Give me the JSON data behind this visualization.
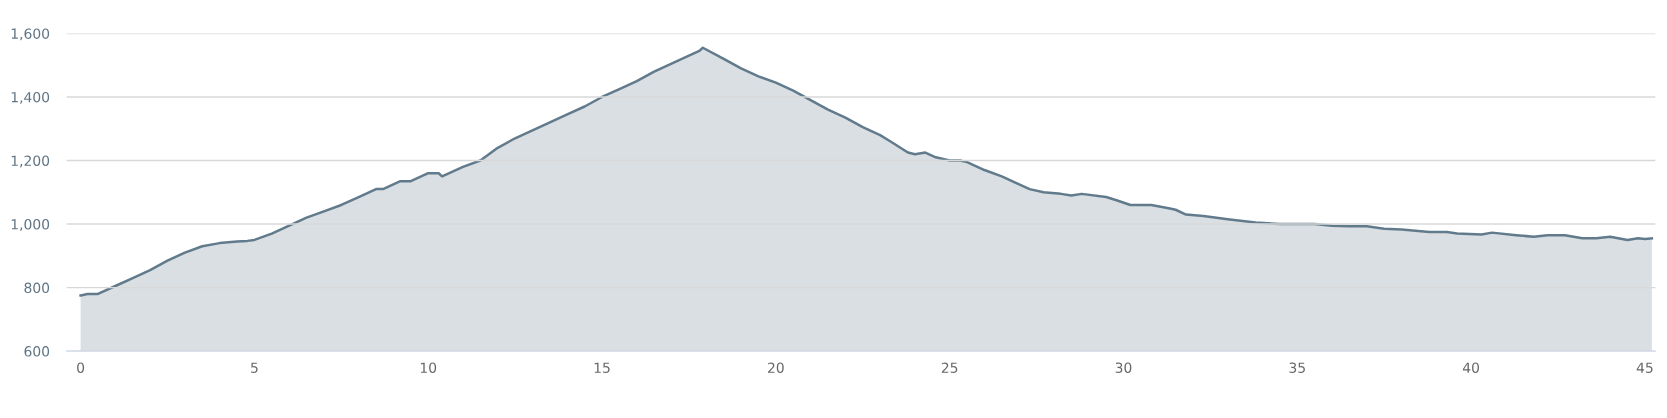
{
  "chart_data": {
    "type": "area",
    "x": [
      0,
      0.2,
      0.5,
      1,
      1.5,
      2,
      2.5,
      3,
      3.5,
      4,
      4.5,
      4.8,
      5,
      5.5,
      6,
      6.5,
      7,
      7.5,
      8,
      8.5,
      8.7,
      9.2,
      9.5,
      10,
      10.3,
      10.4,
      11,
      11.5,
      12,
      12.5,
      13,
      13.5,
      14,
      14.5,
      15,
      15.5,
      16,
      16.5,
      17,
      17.5,
      17.8,
      17.9,
      18.5,
      19,
      19.5,
      20,
      20.5,
      21,
      21.5,
      22,
      22.5,
      23,
      23.3,
      23.8,
      24,
      24.3,
      24.6,
      25,
      25.3,
      25.5,
      26,
      26.5,
      27,
      27.3,
      27.7,
      28.2,
      28.5,
      28.8,
      29.5,
      29.8,
      30.2,
      30.8,
      31.3,
      31.5,
      31.8,
      32.3,
      33,
      33.8,
      34.5,
      35,
      35.5,
      36,
      36.5,
      37,
      37.5,
      38,
      38.8,
      39.3,
      39.6,
      40.3,
      40.6,
      41.3,
      41.8,
      42.2,
      42.7,
      43.2,
      43.6,
      44,
      44.5,
      44.8,
      45,
      45.2
    ],
    "series": [
      {
        "color": "#627b8c",
        "values": [
          775,
          780,
          780,
          805,
          830,
          855,
          885,
          910,
          930,
          940,
          945,
          947,
          950,
          970,
          995,
          1020,
          1040,
          1060,
          1085,
          1110,
          1110,
          1135,
          1135,
          1160,
          1160,
          1150,
          1180,
          1200,
          1240,
          1270,
          1295,
          1320,
          1345,
          1370,
          1400,
          1425,
          1450,
          1480,
          1505,
          1530,
          1545,
          1555,
          1520,
          1490,
          1465,
          1445,
          1420,
          1390,
          1360,
          1335,
          1305,
          1280,
          1260,
          1225,
          1220,
          1225,
          1210,
          1200,
          1200,
          1195,
          1170,
          1150,
          1125,
          1110,
          1100,
          1095,
          1090,
          1095,
          1085,
          1075,
          1060,
          1060,
          1050,
          1045,
          1030,
          1025,
          1015,
          1005,
          1000,
          1000,
          1000,
          995,
          993,
          993,
          985,
          983,
          975,
          975,
          970,
          967,
          973,
          965,
          960,
          965,
          965,
          955,
          955,
          960,
          950,
          955,
          953,
          955
        ]
      }
    ],
    "xlim": [
      -0.4,
      45.3
    ],
    "ylim": [
      600,
      1600
    ],
    "xticks": [
      0,
      5,
      10,
      15,
      20,
      25,
      30,
      35,
      40,
      45
    ],
    "yticks": [
      {
        "value": 600,
        "label": "600"
      },
      {
        "value": 800,
        "label": "800"
      },
      {
        "value": 1000,
        "label": "1,000"
      },
      {
        "value": 1200,
        "label": "1,200"
      },
      {
        "value": 1400,
        "label": "1,400"
      },
      {
        "value": 1600,
        "label": "1,600"
      }
    ],
    "grid": "y",
    "legend": false
  }
}
